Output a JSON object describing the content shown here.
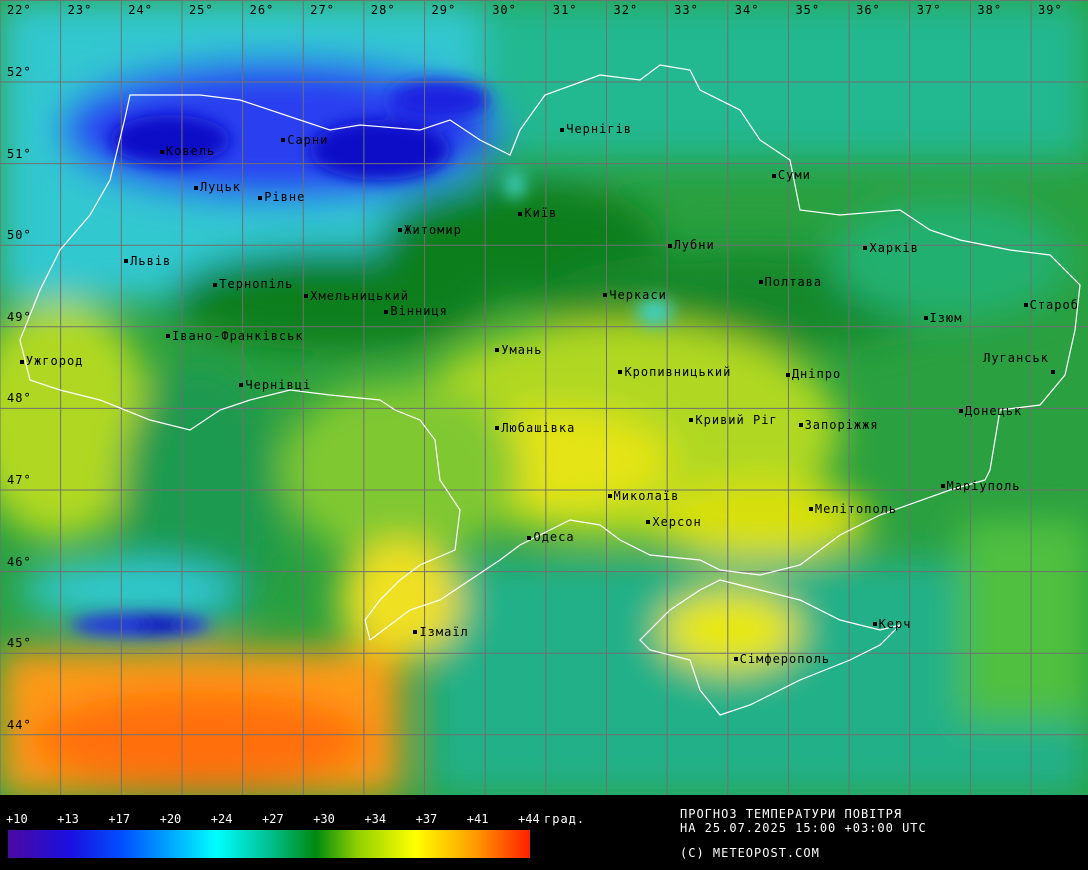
{
  "map": {
    "longitude_labels": [
      "22°",
      "23°",
      "24°",
      "25°",
      "26°",
      "27°",
      "28°",
      "29°",
      "30°",
      "31°",
      "32°",
      "33°",
      "34°",
      "35°",
      "36°",
      "37°",
      "38°",
      "39°"
    ],
    "latitude_labels": [
      "52°",
      "51°",
      "50°",
      "49°",
      "48°",
      "47°",
      "46°",
      "45°",
      "44°"
    ],
    "cities": [
      {
        "name": "Ковель",
        "lon": 24.67,
        "lat": 51.15
      },
      {
        "name": "Сарни",
        "lon": 26.67,
        "lat": 51.29
      },
      {
        "name": "Луцьк",
        "lon": 25.23,
        "lat": 50.71
      },
      {
        "name": "Рівне",
        "lon": 26.29,
        "lat": 50.59
      },
      {
        "name": "Житомир",
        "lon": 28.6,
        "lat": 50.19
      },
      {
        "name": "Чернігів",
        "lon": 31.27,
        "lat": 51.42
      },
      {
        "name": "Суми",
        "lon": 34.76,
        "lat": 50.86
      },
      {
        "name": "Київ",
        "lon": 30.58,
        "lat": 50.39
      },
      {
        "name": "Лубни",
        "lon": 33.04,
        "lat": 50.0
      },
      {
        "name": "Харків",
        "lon": 36.27,
        "lat": 49.97
      },
      {
        "name": "Львів",
        "lon": 24.08,
        "lat": 49.81
      },
      {
        "name": "Тернопіль",
        "lon": 25.55,
        "lat": 49.52
      },
      {
        "name": "Хмельницький",
        "lon": 27.05,
        "lat": 49.38
      },
      {
        "name": "Вінниця",
        "lon": 28.37,
        "lat": 49.19
      },
      {
        "name": "Черкаси",
        "lon": 31.98,
        "lat": 49.39
      },
      {
        "name": "Полтава",
        "lon": 34.54,
        "lat": 49.55
      },
      {
        "name": "Староб",
        "lon": 38.91,
        "lat": 49.27
      },
      {
        "name": "Ізюм",
        "lon": 37.26,
        "lat": 49.11
      },
      {
        "name": "Івано-Франківськ",
        "lon": 24.77,
        "lat": 48.89
      },
      {
        "name": "Ужгород",
        "lon": 22.36,
        "lat": 48.58
      },
      {
        "name": "Умань",
        "lon": 30.2,
        "lat": 48.72
      },
      {
        "name": "Луганськ",
        "lon": 39.36,
        "lat": 48.52,
        "label_left": true
      },
      {
        "name": "Кропивницький",
        "lon": 32.23,
        "lat": 48.45
      },
      {
        "name": "Дніпро",
        "lon": 34.99,
        "lat": 48.42
      },
      {
        "name": "Чернівці",
        "lon": 25.98,
        "lat": 48.29
      },
      {
        "name": "Донецьк",
        "lon": 37.84,
        "lat": 47.97
      },
      {
        "name": "Кривий Ріг",
        "lon": 33.4,
        "lat": 47.86
      },
      {
        "name": "Запоріжжя",
        "lon": 35.2,
        "lat": 47.8
      },
      {
        "name": "Любашівка",
        "lon": 30.2,
        "lat": 47.76
      },
      {
        "name": "Маріуполь",
        "lon": 37.54,
        "lat": 47.05
      },
      {
        "name": "Миколаїв",
        "lon": 32.05,
        "lat": 46.93
      },
      {
        "name": "Херсон",
        "lon": 32.69,
        "lat": 46.61
      },
      {
        "name": "Мелітополь",
        "lon": 35.37,
        "lat": 46.77
      },
      {
        "name": "Одеса",
        "lon": 30.73,
        "lat": 46.42
      },
      {
        "name": "Ізмаїл",
        "lon": 28.85,
        "lat": 45.26
      },
      {
        "name": "Керч",
        "lon": 36.42,
        "lat": 45.36
      },
      {
        "name": "Сімферополь",
        "lon": 34.13,
        "lat": 44.93
      }
    ],
    "colors": {
      "deep_blue": "#1010c8",
      "blue": "#2a40f0",
      "cyan": "#30d0d8",
      "teal": "#20b890",
      "green": "#2aa040",
      "dark_green": "#0e7e1e",
      "yellow_green": "#b0d820",
      "yellow": "#eaea10",
      "orange": "#ff8a10",
      "border": "#ffffff",
      "grid": "#707070"
    }
  },
  "legend": {
    "ticks": [
      "+10",
      "+13",
      "+17",
      "+20",
      "+24",
      "+27",
      "+30",
      "+34",
      "+37",
      "+41",
      "+44"
    ],
    "unit": "град.",
    "title_line1": "ПРОГНОЗ ТЕМПЕРАТУРИ ПОВІТРЯ",
    "title_line2": "НА 25.07.2025 15:00 +03:00 UTC",
    "copyright": "(C) METEOPOST.COM"
  }
}
